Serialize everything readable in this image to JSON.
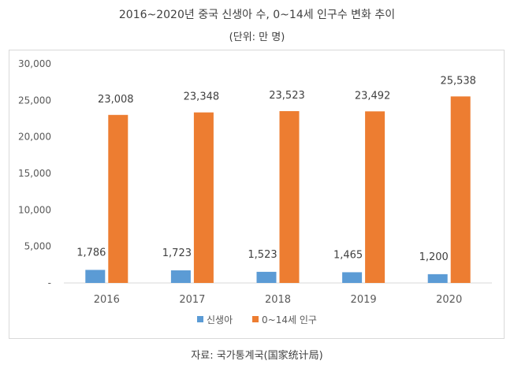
{
  "title": "2016~2020년 중국 신생아 수, 0~14세 인구수 변화 추이",
  "subtitle": "(단위: 만 명)",
  "source": "자료: 국가통계국(国家统计局)",
  "chart_data": {
    "type": "bar",
    "categories": [
      "2016",
      "2017",
      "2018",
      "2019",
      "2020"
    ],
    "series": [
      {
        "name": "신생아",
        "values": [
          1786,
          1723,
          1523,
          1465,
          1200
        ],
        "color": "#5b9bd5"
      },
      {
        "name": "0~14세 인구",
        "values": [
          23008,
          23348,
          23523,
          23492,
          25538
        ],
        "color": "#ed7d31"
      }
    ],
    "yticks": [
      "-",
      "5,000",
      "10,000",
      "15,000",
      "20,000",
      "25,000",
      "30,000"
    ],
    "ylim": [
      0,
      30000
    ],
    "grid": false,
    "legend": "bottom"
  }
}
